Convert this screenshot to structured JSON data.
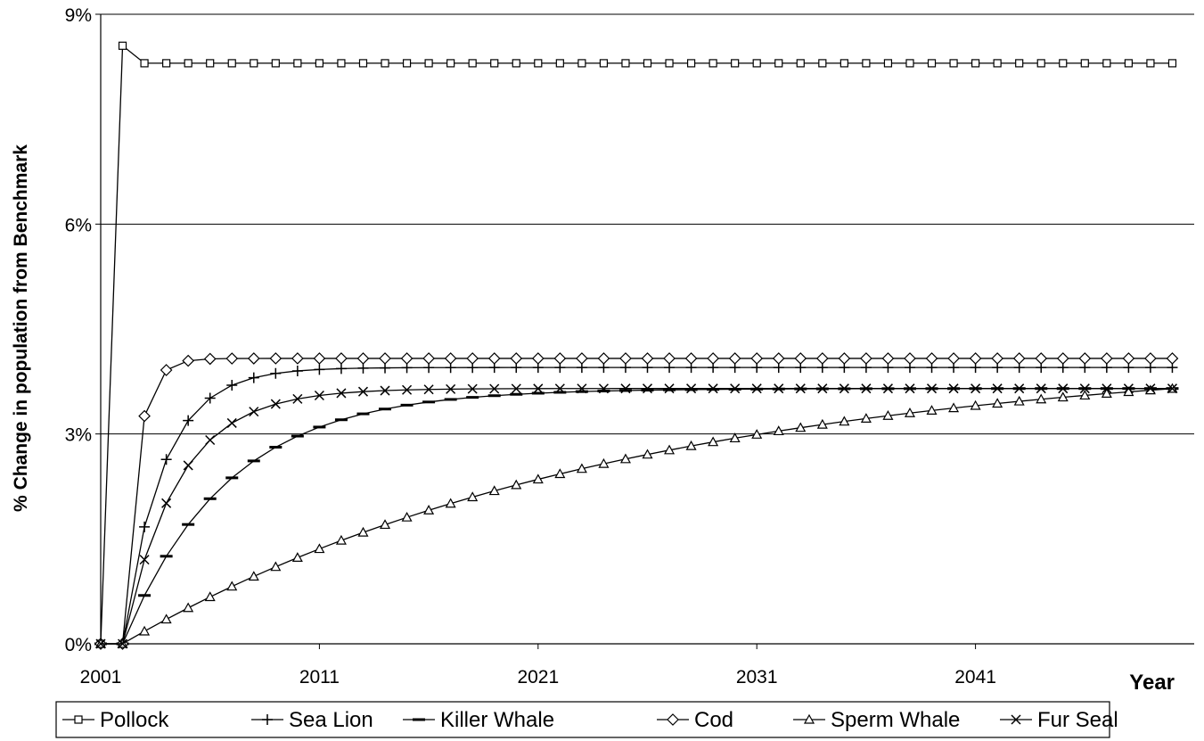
{
  "chart_data": {
    "type": "line",
    "xlabel": "Year",
    "ylabel": "% Change in population from Benchmark",
    "xlim": [
      2001,
      2051
    ],
    "ylim": [
      0,
      9
    ],
    "x_ticks": [
      2001,
      2011,
      2021,
      2031,
      2041
    ],
    "x_tick_labels": [
      "2001",
      "2011",
      "2021",
      "2031",
      "2041"
    ],
    "y_ticks": [
      0,
      3,
      6,
      9
    ],
    "y_tick_labels": [
      "0%",
      "3%",
      "6%",
      "9%"
    ],
    "grid": "horizontal",
    "legend_position": "bottom",
    "marker_colors": {
      "line": "#000000",
      "grid": "#000000",
      "background": "#ffffff"
    },
    "x_start": 2001,
    "x_end": 2050,
    "series": [
      {
        "name": "Pollock",
        "marker": "square",
        "params": {
          "delay": 1,
          "final": 8.3,
          "rate": 0,
          "overshoot": 0.25
        }
      },
      {
        "name": "Sea Lion",
        "marker": "plus",
        "params": {
          "delay": 2,
          "final": 3.95,
          "rate": 0.55,
          "overshoot": 0
        }
      },
      {
        "name": "Killer Whale",
        "marker": "dash",
        "params": {
          "delay": 2,
          "final": 3.65,
          "rate": 0.21,
          "overshoot": 0
        }
      },
      {
        "name": "Cod",
        "marker": "diamond",
        "params": {
          "delay": 2,
          "final": 4.08,
          "rate": 1.6,
          "overshoot": 0
        }
      },
      {
        "name": "Sperm Whale",
        "marker": "triangle",
        "params": {
          "delay": 2,
          "final": 4.15,
          "rate": 0.044,
          "overshoot": 0
        }
      },
      {
        "name": "Fur Seal",
        "marker": "x",
        "params": {
          "delay": 2,
          "final": 3.65,
          "rate": 0.4,
          "overshoot": 0
        }
      }
    ]
  }
}
